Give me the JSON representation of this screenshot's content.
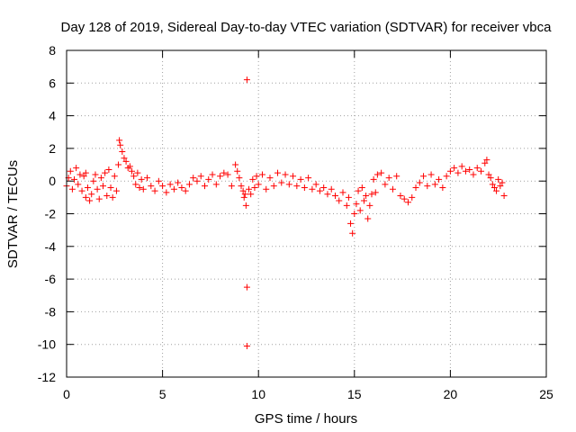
{
  "chart_data": {
    "type": "scatter",
    "title": "Day 128 of 2019, Sidereal Day-to-day VTEC variation (SDTVAR) for receiver vbca",
    "xlabel": "GPS time / hours",
    "ylabel": "SDTVAR / TECUs",
    "xlim": [
      0,
      25
    ],
    "ylim": [
      -12,
      8
    ],
    "xticks": [
      0,
      5,
      10,
      15,
      20,
      25
    ],
    "yticks": [
      -12,
      -10,
      -8,
      -6,
      -4,
      -2,
      0,
      2,
      4,
      6,
      8
    ],
    "grid": true,
    "marker": "+",
    "series": [
      {
        "name": "SDTVAR",
        "color": "#ff0000",
        "points": [
          [
            0.0,
            -0.3
          ],
          [
            0.1,
            0.2
          ],
          [
            0.2,
            0.6
          ],
          [
            0.3,
            -0.5
          ],
          [
            0.4,
            0.1
          ],
          [
            0.5,
            0.8
          ],
          [
            0.6,
            -0.2
          ],
          [
            0.7,
            0.4
          ],
          [
            0.8,
            -0.6
          ],
          [
            0.9,
            0.3
          ],
          [
            1.0,
            0.5
          ],
          [
            1.1,
            -0.4
          ],
          [
            1.0,
            -1.0
          ],
          [
            1.2,
            -1.2
          ],
          [
            1.3,
            -0.8
          ],
          [
            1.4,
            0.0
          ],
          [
            1.5,
            0.4
          ],
          [
            1.6,
            -0.5
          ],
          [
            1.7,
            -1.1
          ],
          [
            1.8,
            0.2
          ],
          [
            1.9,
            -0.3
          ],
          [
            2.0,
            0.5
          ],
          [
            2.1,
            -0.9
          ],
          [
            2.2,
            0.7
          ],
          [
            2.3,
            -0.4
          ],
          [
            2.4,
            -1.0
          ],
          [
            2.5,
            0.3
          ],
          [
            2.6,
            -0.6
          ],
          [
            2.7,
            1.0
          ],
          [
            2.75,
            2.5
          ],
          [
            2.8,
            2.2
          ],
          [
            2.9,
            1.8
          ],
          [
            3.0,
            1.4
          ],
          [
            3.1,
            1.2
          ],
          [
            3.2,
            0.8
          ],
          [
            3.3,
            0.9
          ],
          [
            3.4,
            0.6
          ],
          [
            3.5,
            0.3
          ],
          [
            3.6,
            -0.2
          ],
          [
            3.7,
            0.5
          ],
          [
            3.8,
            -0.4
          ],
          [
            3.9,
            0.1
          ],
          [
            4.0,
            -0.5
          ],
          [
            4.2,
            0.2
          ],
          [
            4.4,
            -0.3
          ],
          [
            4.6,
            -0.6
          ],
          [
            4.8,
            0.0
          ],
          [
            5.0,
            -0.3
          ],
          [
            5.2,
            -0.7
          ],
          [
            5.4,
            -0.2
          ],
          [
            5.6,
            -0.5
          ],
          [
            5.8,
            -0.1
          ],
          [
            6.0,
            -0.4
          ],
          [
            6.2,
            -0.6
          ],
          [
            6.4,
            -0.2
          ],
          [
            6.6,
            0.2
          ],
          [
            6.8,
            0.0
          ],
          [
            7.0,
            0.3
          ],
          [
            7.2,
            -0.3
          ],
          [
            7.4,
            0.1
          ],
          [
            7.6,
            0.4
          ],
          [
            7.8,
            -0.2
          ],
          [
            8.0,
            0.3
          ],
          [
            8.2,
            0.5
          ],
          [
            8.4,
            0.4
          ],
          [
            8.6,
            -0.3
          ],
          [
            8.8,
            1.0
          ],
          [
            8.9,
            0.6
          ],
          [
            9.0,
            0.2
          ],
          [
            9.1,
            -0.3
          ],
          [
            9.2,
            -0.6
          ],
          [
            9.25,
            -1.0
          ],
          [
            9.3,
            -0.8
          ],
          [
            9.35,
            -1.5
          ],
          [
            9.4,
            6.2
          ],
          [
            9.4,
            -6.5
          ],
          [
            9.4,
            -10.1
          ],
          [
            9.5,
            -0.5
          ],
          [
            9.6,
            -0.8
          ],
          [
            9.7,
            0.1
          ],
          [
            9.8,
            -0.4
          ],
          [
            9.9,
            0.3
          ],
          [
            10.0,
            -0.2
          ],
          [
            10.2,
            0.4
          ],
          [
            10.4,
            -0.5
          ],
          [
            10.6,
            0.2
          ],
          [
            10.8,
            -0.3
          ],
          [
            11.0,
            0.5
          ],
          [
            11.2,
            -0.1
          ],
          [
            11.4,
            0.4
          ],
          [
            11.6,
            -0.2
          ],
          [
            11.8,
            0.3
          ],
          [
            12.0,
            -0.3
          ],
          [
            12.2,
            0.1
          ],
          [
            12.4,
            -0.4
          ],
          [
            12.6,
            0.2
          ],
          [
            12.8,
            -0.5
          ],
          [
            13.0,
            -0.2
          ],
          [
            13.2,
            -0.6
          ],
          [
            13.4,
            -0.4
          ],
          [
            13.6,
            -0.8
          ],
          [
            13.8,
            -0.5
          ],
          [
            14.0,
            -0.9
          ],
          [
            14.2,
            -1.2
          ],
          [
            14.4,
            -0.7
          ],
          [
            14.6,
            -1.5
          ],
          [
            14.7,
            -1.0
          ],
          [
            14.8,
            -2.6
          ],
          [
            14.9,
            -3.2
          ],
          [
            15.0,
            -2.0
          ],
          [
            15.1,
            -1.4
          ],
          [
            15.2,
            -0.6
          ],
          [
            15.3,
            -1.8
          ],
          [
            15.4,
            -0.4
          ],
          [
            15.5,
            -1.2
          ],
          [
            15.6,
            -0.9
          ],
          [
            15.7,
            -2.3
          ],
          [
            15.8,
            -1.5
          ],
          [
            15.9,
            -0.8
          ],
          [
            16.0,
            0.1
          ],
          [
            16.1,
            -0.7
          ],
          [
            16.2,
            0.4
          ],
          [
            16.4,
            0.5
          ],
          [
            16.6,
            -0.2
          ],
          [
            16.8,
            0.2
          ],
          [
            17.0,
            -0.5
          ],
          [
            17.2,
            0.3
          ],
          [
            17.4,
            -0.9
          ],
          [
            17.6,
            -1.1
          ],
          [
            17.8,
            -1.3
          ],
          [
            18.0,
            -1.0
          ],
          [
            18.2,
            -0.4
          ],
          [
            18.4,
            -0.1
          ],
          [
            18.6,
            0.3
          ],
          [
            18.8,
            -0.3
          ],
          [
            19.0,
            0.4
          ],
          [
            19.2,
            -0.2
          ],
          [
            19.4,
            0.1
          ],
          [
            19.6,
            -0.4
          ],
          [
            19.8,
            0.3
          ],
          [
            20.0,
            0.6
          ],
          [
            20.2,
            0.8
          ],
          [
            20.4,
            0.5
          ],
          [
            20.6,
            0.9
          ],
          [
            20.8,
            0.6
          ],
          [
            21.0,
            0.7
          ],
          [
            21.2,
            0.4
          ],
          [
            21.4,
            0.8
          ],
          [
            21.6,
            0.6
          ],
          [
            21.8,
            1.1
          ],
          [
            21.9,
            1.3
          ],
          [
            22.0,
            0.4
          ],
          [
            22.1,
            0.2
          ],
          [
            22.2,
            -0.2
          ],
          [
            22.3,
            -0.4
          ],
          [
            22.4,
            -0.6
          ],
          [
            22.5,
            0.1
          ],
          [
            22.6,
            -0.3
          ],
          [
            22.7,
            -0.1
          ],
          [
            22.8,
            -0.9
          ]
        ]
      }
    ]
  }
}
